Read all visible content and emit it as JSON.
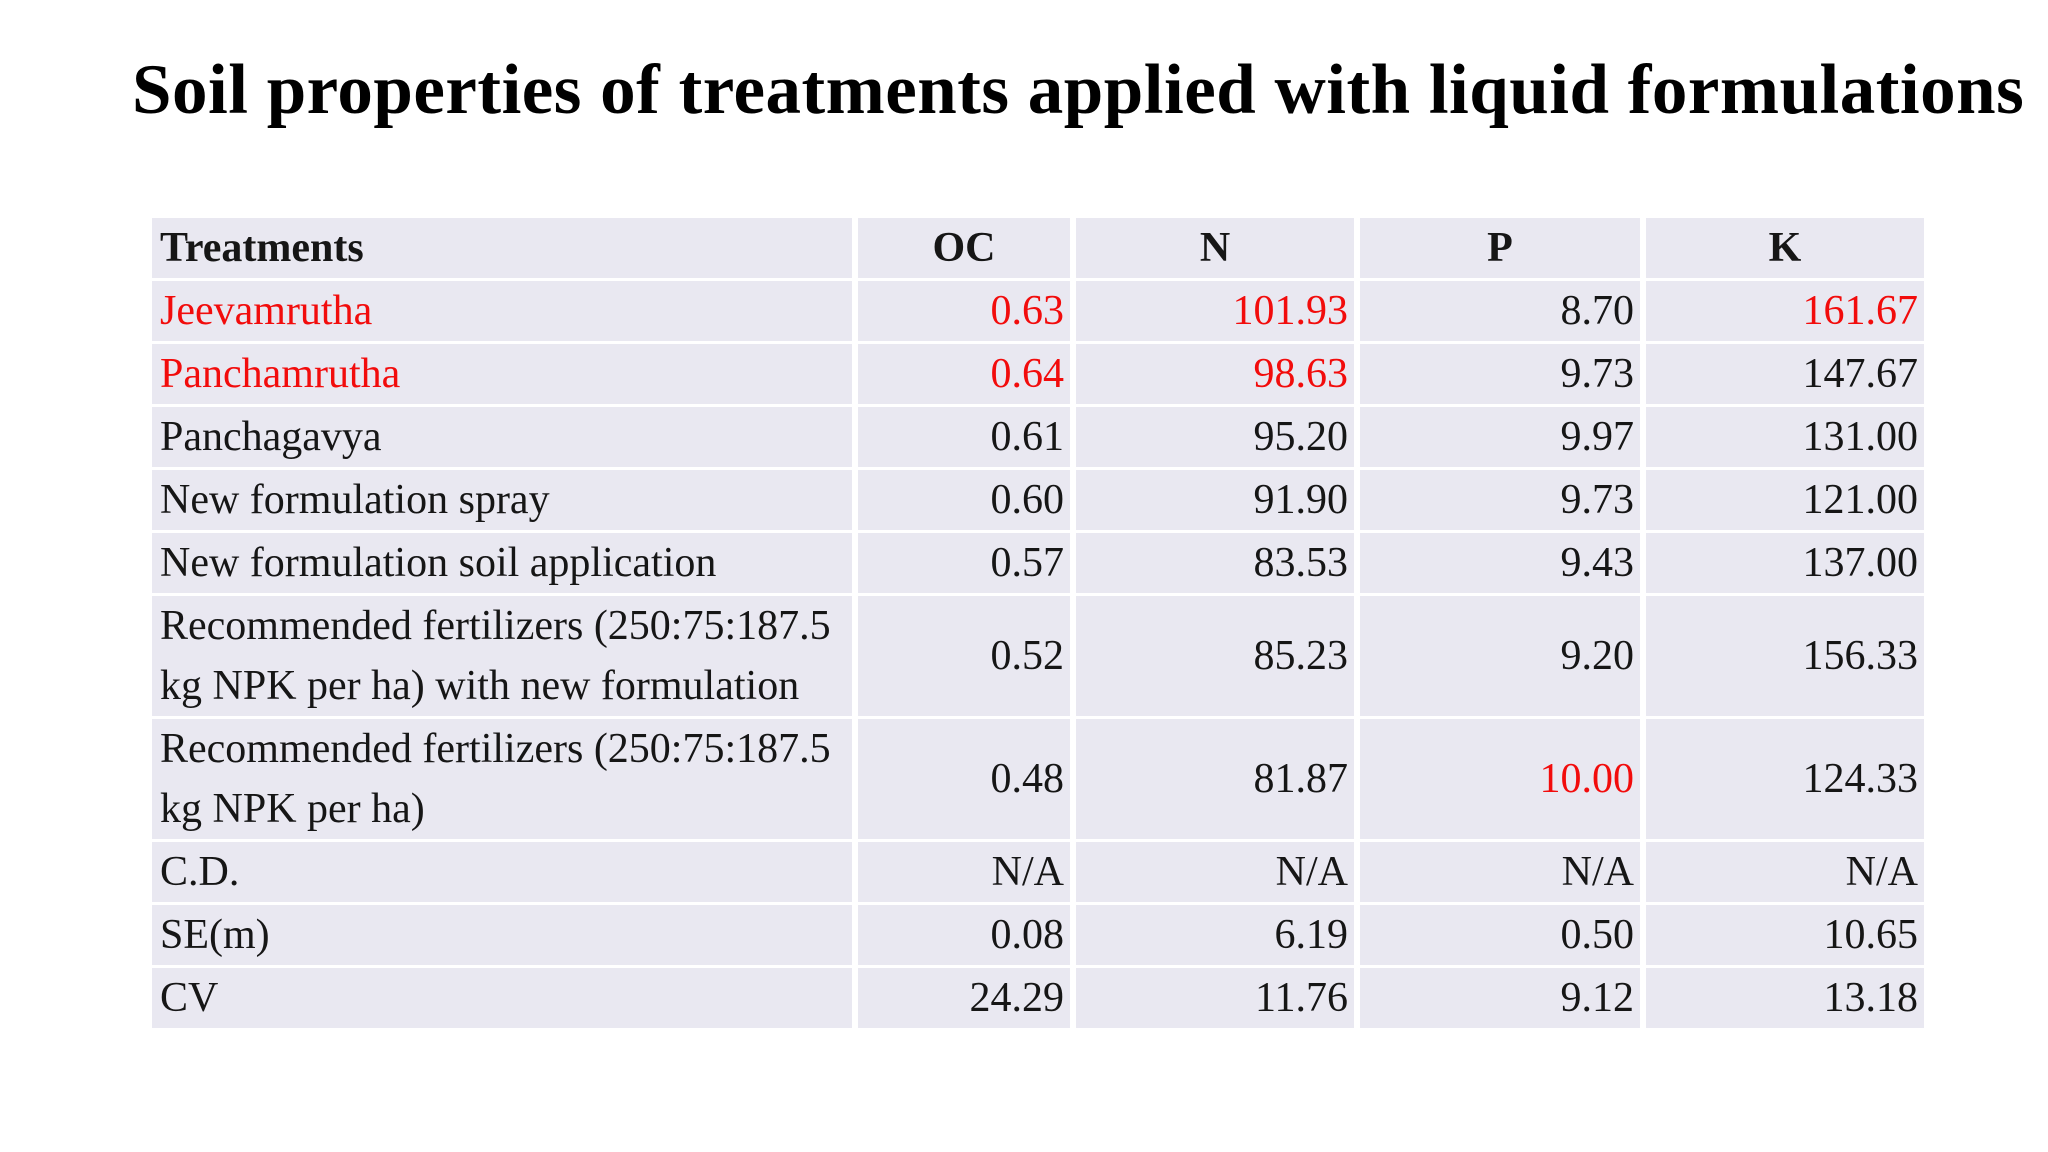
{
  "title": "Soil properties of treatments applied with liquid formulations",
  "colors": {
    "accent_red": "#f20c0c",
    "row_background": "#e9e8f1",
    "text": "#161616",
    "page_background": "#ffffff"
  },
  "table": {
    "columns": [
      "Treatments",
      "OC",
      "N",
      "P",
      "K"
    ],
    "rows": [
      {
        "treatment": "Jeevamrutha",
        "values": [
          "0.63",
          "101.93",
          "8.70",
          "161.67"
        ],
        "red": [
          true,
          true,
          true,
          false,
          true
        ]
      },
      {
        "treatment": "Panchamrutha",
        "values": [
          "0.64",
          "98.63",
          "9.73",
          "147.67"
        ],
        "red": [
          true,
          true,
          true,
          false,
          false
        ]
      },
      {
        "treatment": "Panchagavya",
        "values": [
          "0.61",
          "95.20",
          "9.97",
          "131.00"
        ],
        "red": [
          false,
          false,
          false,
          false,
          false
        ]
      },
      {
        "treatment": "New formulation spray",
        "values": [
          "0.60",
          "91.90",
          "9.73",
          "121.00"
        ],
        "red": [
          false,
          false,
          false,
          false,
          false
        ]
      },
      {
        "treatment": "New formulation soil application",
        "values": [
          "0.57",
          "83.53",
          "9.43",
          "137.00"
        ],
        "red": [
          false,
          false,
          false,
          false,
          false
        ]
      },
      {
        "treatment": "Recommended fertilizers (250:75:187.5 kg NPK per ha) with new formulation",
        "values": [
          "0.52",
          "85.23",
          "9.20",
          "156.33"
        ],
        "red": [
          false,
          false,
          false,
          false,
          false
        ]
      },
      {
        "treatment": "Recommended fertilizers (250:75:187.5 kg NPK per ha)",
        "values": [
          "0.48",
          "81.87",
          "10.00",
          "124.33"
        ],
        "red": [
          false,
          false,
          false,
          true,
          false
        ]
      },
      {
        "treatment": "C.D.",
        "values": [
          "N/A",
          "N/A",
          "N/A",
          "N/A"
        ],
        "red": [
          false,
          false,
          false,
          false,
          false
        ]
      },
      {
        "treatment": "SE(m)",
        "values": [
          "0.08",
          "6.19",
          "0.50",
          "10.65"
        ],
        "red": [
          false,
          false,
          false,
          false,
          false
        ]
      },
      {
        "treatment": "CV",
        "values": [
          "24.29",
          "11.76",
          "9.12",
          "13.18"
        ],
        "red": [
          false,
          false,
          false,
          false,
          false
        ]
      }
    ]
  }
}
